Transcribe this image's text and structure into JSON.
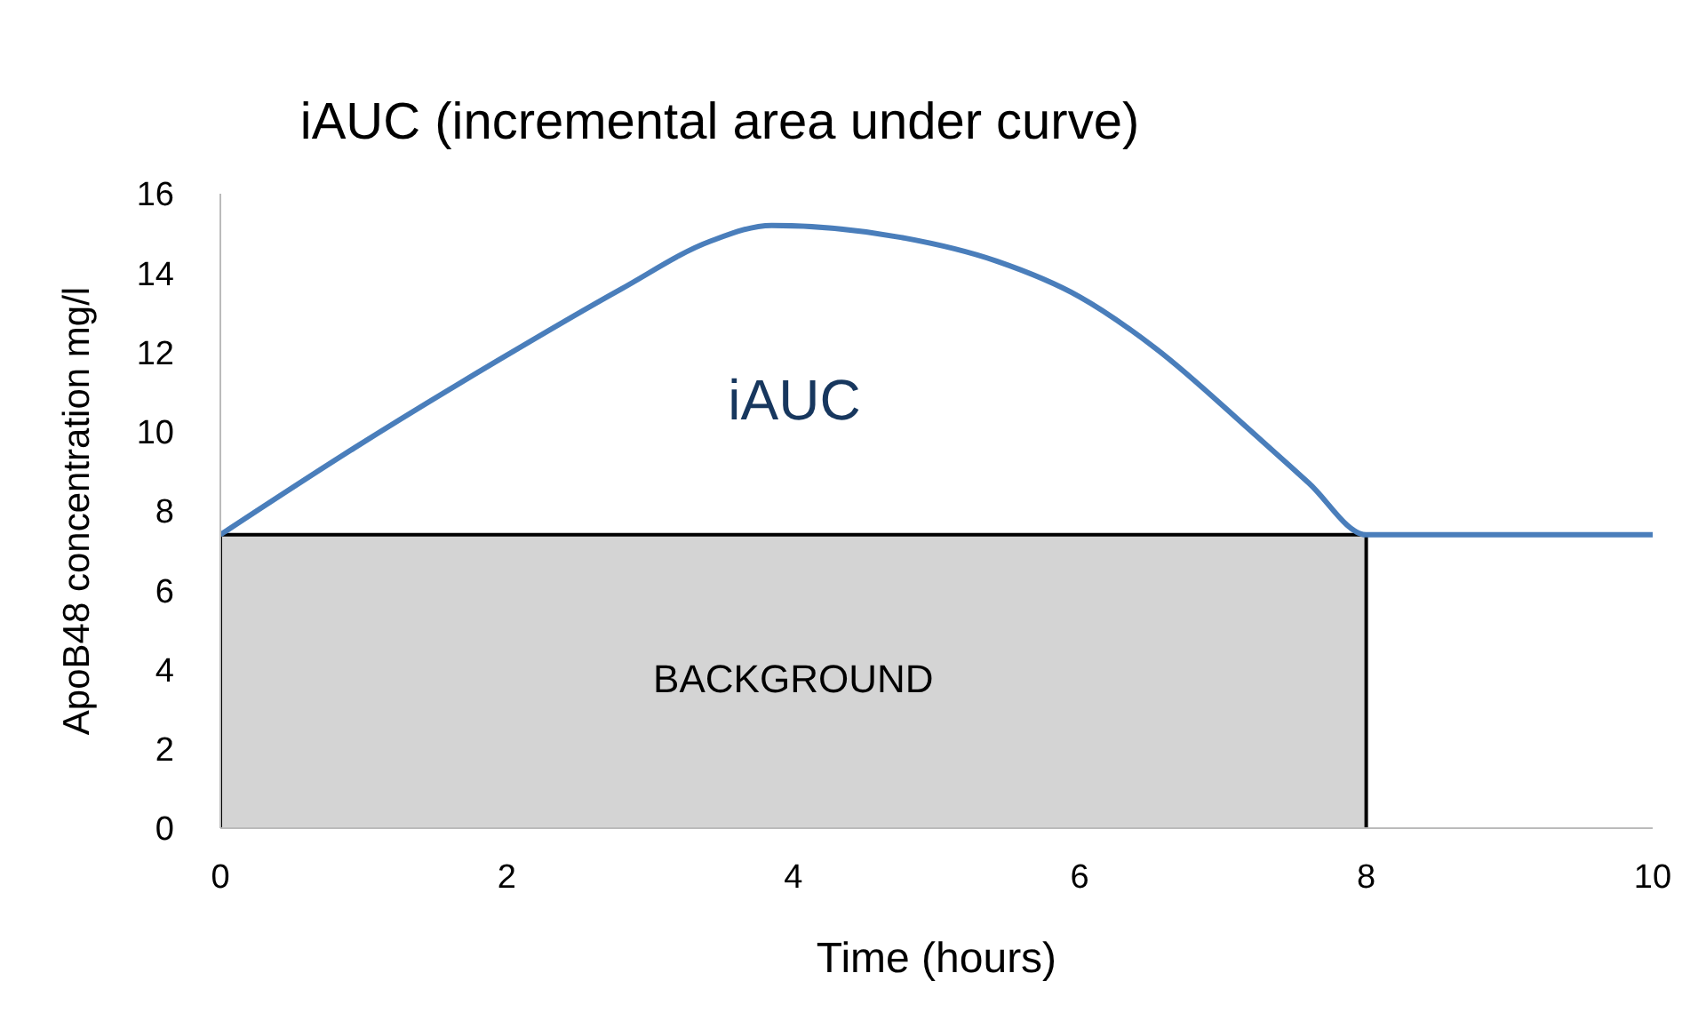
{
  "chart_data": {
    "type": "line",
    "title": "iAUC (incremental area under curve)",
    "xlabel": "Time (hours)",
    "ylabel": "ApoB48 concentration mg/l",
    "xlim": [
      0,
      10
    ],
    "xticks": [
      0,
      2,
      4,
      6,
      8,
      10
    ],
    "ylim": [
      0,
      16
    ],
    "yticks": [
      0,
      2,
      4,
      6,
      8,
      10,
      12,
      14,
      16
    ],
    "grid": false,
    "marker": "none",
    "line_style": "solid",
    "annotations": [
      "iAUC"
    ],
    "series": [
      {
        "name": "BACKGROUND",
        "type": "area",
        "color": "#d4d4d4",
        "x": [
          0,
          0,
          8,
          8
        ],
        "values": [
          0,
          7.4,
          7.4,
          0
        ]
      },
      {
        "color": "#4a7ebb",
        "x": [
          0,
          0.94,
          1.94,
          2.8,
          3.42,
          3.85,
          4.75,
          5.42,
          6,
          6.53,
          7.2,
          7.6,
          8,
          10
        ],
        "values": [
          7.4,
          9.6,
          11.8,
          13.6,
          14.8,
          15.2,
          14.9,
          14.3,
          13.4,
          12.1,
          10,
          8.7,
          7.4,
          7.4
        ]
      }
    ]
  }
}
